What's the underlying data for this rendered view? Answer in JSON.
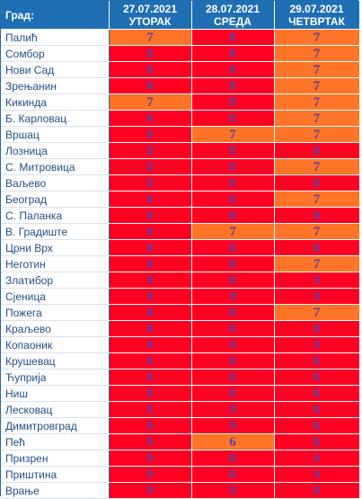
{
  "header": {
    "city_label": "Град:",
    "days": [
      {
        "date": "27.07.2021",
        "day": "УТОРАК"
      },
      {
        "date": "28.07.2021",
        "day": "СРЕДА"
      },
      {
        "date": "29.07.2021",
        "day": "ЧЕТВРТАК"
      }
    ]
  },
  "colors": {
    "header_bg": "#1e6fb4",
    "high": "#ff0022",
    "moderate": "#ff7427",
    "value_text": "#5b3fa3",
    "city_text": "#1f4e8c"
  },
  "rows": [
    {
      "city": "Палић",
      "v": [
        "7",
        "8",
        "7"
      ]
    },
    {
      "city": "Сомбор",
      "v": [
        "8",
        "8",
        "7"
      ]
    },
    {
      "city": "Нови Сад",
      "v": [
        "8",
        "8",
        "7"
      ]
    },
    {
      "city": "Зрењанин",
      "v": [
        "8",
        "8",
        "7"
      ]
    },
    {
      "city": "Кикинда",
      "v": [
        "7",
        "8",
        "7"
      ]
    },
    {
      "city": "Б. Карловац",
      "v": [
        "8",
        "8",
        "7"
      ]
    },
    {
      "city": "Вршац",
      "v": [
        "8",
        "7",
        "7"
      ]
    },
    {
      "city": "Лозница",
      "v": [
        "8",
        "8",
        "8"
      ]
    },
    {
      "city": "С. Митровица",
      "v": [
        "8",
        "8",
        "7"
      ]
    },
    {
      "city": "Ваљево",
      "v": [
        "8",
        "8",
        "8"
      ]
    },
    {
      "city": "Београд",
      "v": [
        "8",
        "8",
        "7"
      ]
    },
    {
      "city": "С. Паланка",
      "v": [
        "8",
        "8",
        "8"
      ]
    },
    {
      "city": "В. Градиште",
      "v": [
        "8",
        "7",
        "7"
      ]
    },
    {
      "city": "Црни Врх",
      "v": [
        "8",
        "8",
        "8"
      ]
    },
    {
      "city": "Неготин",
      "v": [
        "8",
        "8",
        "7"
      ]
    },
    {
      "city": "Златибор",
      "v": [
        "9",
        "8",
        "9"
      ]
    },
    {
      "city": "Сјеница",
      "v": [
        "9",
        "9",
        "9"
      ]
    },
    {
      "city": "Пожега",
      "v": [
        "8",
        "8",
        "7"
      ]
    },
    {
      "city": "Краљево",
      "v": [
        "8",
        "8",
        "8"
      ]
    },
    {
      "city": "Копаоник",
      "v": [
        "9",
        "9",
        "9"
      ]
    },
    {
      "city": "Крушевац",
      "v": [
        "8",
        "8",
        "8"
      ]
    },
    {
      "city": "Ћуприја",
      "v": [
        "8",
        "8",
        "8"
      ]
    },
    {
      "city": "Ниш",
      "v": [
        "8",
        "8",
        "8"
      ]
    },
    {
      "city": "Лесковац",
      "v": [
        "9",
        "9",
        "8"
      ]
    },
    {
      "city": "Димитровград",
      "v": [
        "9",
        "9",
        "8"
      ]
    },
    {
      "city": "Пећ",
      "v": [
        "9",
        "6",
        "8"
      ]
    },
    {
      "city": "Призрен",
      "v": [
        "9",
        "8",
        "9"
      ]
    },
    {
      "city": "Приштина",
      "v": [
        "9",
        "8",
        "9"
      ]
    },
    {
      "city": "Врање",
      "v": [
        "9",
        "9",
        "8"
      ]
    }
  ]
}
